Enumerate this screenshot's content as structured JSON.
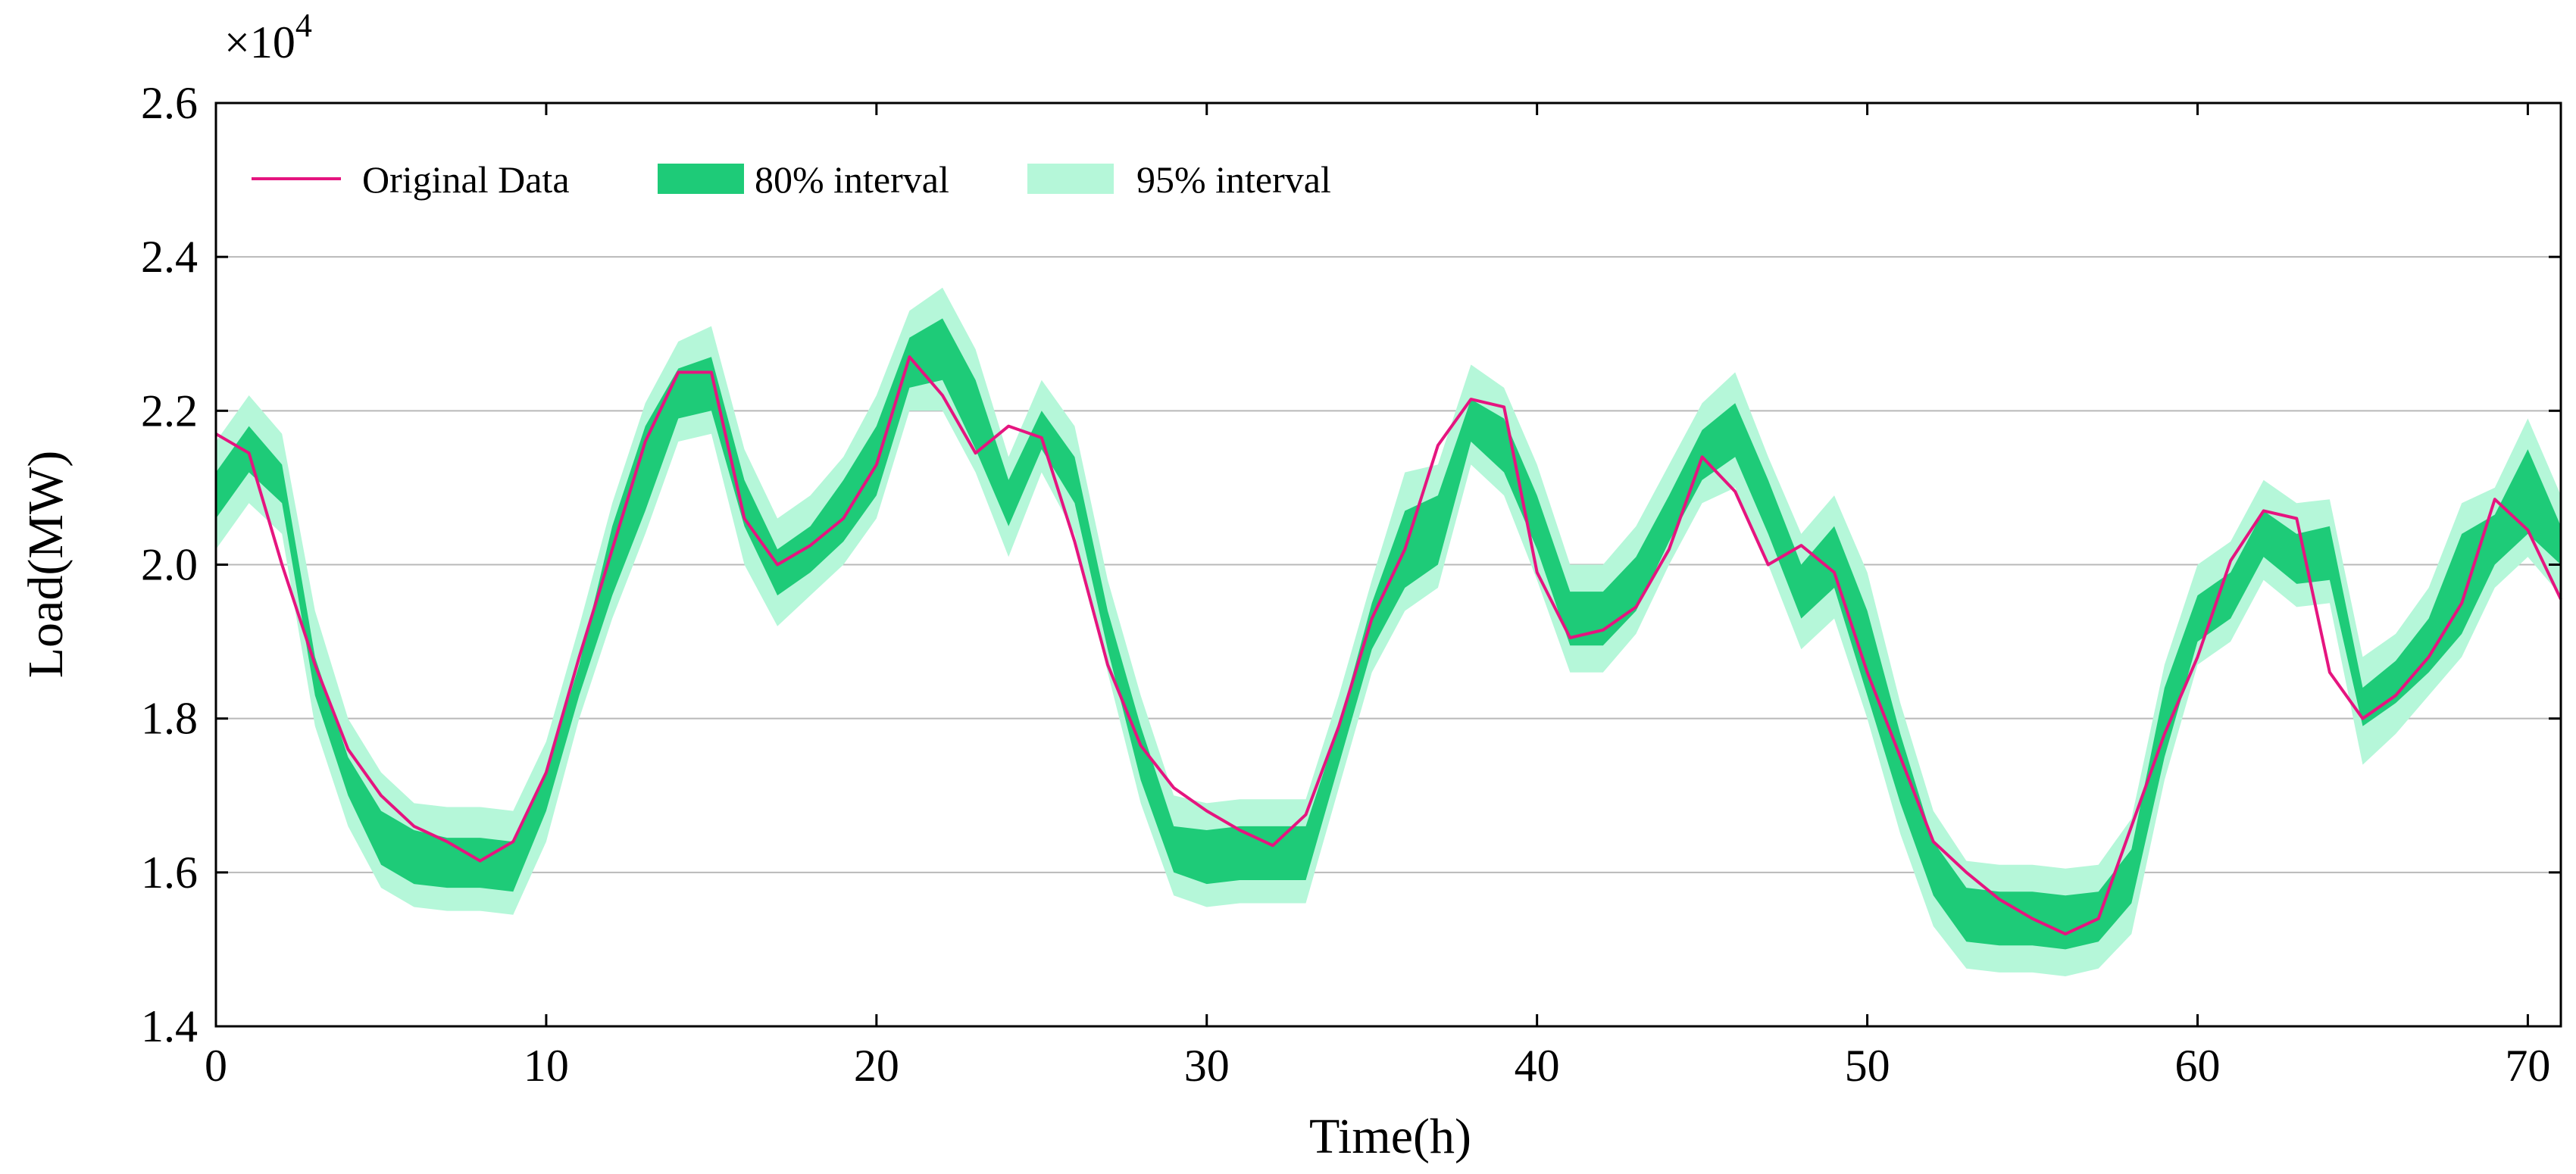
{
  "chart_data": {
    "type": "line",
    "title": "",
    "xlabel": "Time(h)",
    "ylabel": "Load(MW)",
    "y_scale_label": "×10",
    "y_scale_exponent": "4",
    "xlim": [
      0,
      71
    ],
    "ylim": [
      1.4,
      2.6
    ],
    "x_ticks": [
      0,
      10,
      20,
      30,
      40,
      50,
      60,
      70
    ],
    "x_tick_labels": [
      "0",
      "10",
      "20",
      "30",
      "40",
      "50",
      "60",
      "70"
    ],
    "y_ticks": [
      1.4,
      1.6,
      1.8,
      2.0,
      2.2,
      2.4,
      2.6
    ],
    "y_tick_labels": [
      "1.4",
      "1.6",
      "1.8",
      "2.0",
      "2.2",
      "2.4",
      "2.6"
    ],
    "grid": "horizontal",
    "legend_position": "top-left",
    "legend": [
      "Original Data",
      "80% interval",
      "95% interval"
    ],
    "colors": {
      "original": "#e5157f",
      "band80": "#1ecb78",
      "band95": "#b5f7d9",
      "grid": "#b9b9b9",
      "axis": "#000000"
    },
    "x": [
      0,
      1,
      2,
      3,
      4,
      5,
      6,
      7,
      8,
      9,
      10,
      11,
      12,
      13,
      14,
      15,
      16,
      17,
      18,
      19,
      20,
      21,
      22,
      23,
      24,
      25,
      26,
      27,
      28,
      29,
      30,
      31,
      32,
      33,
      34,
      35,
      36,
      37,
      38,
      39,
      40,
      41,
      42,
      43,
      44,
      45,
      46,
      47,
      48,
      49,
      50,
      51,
      52,
      53,
      54,
      55,
      56,
      57,
      58,
      59,
      60,
      61,
      62,
      63,
      64,
      65,
      66,
      67,
      68,
      69,
      70,
      71
    ],
    "series": [
      {
        "name": "Original Data",
        "values": [
          2.17,
          2.145,
          2.0,
          1.87,
          1.76,
          1.7,
          1.66,
          1.64,
          1.615,
          1.64,
          1.73,
          1.88,
          2.02,
          2.16,
          2.25,
          2.25,
          2.06,
          2.0,
          2.025,
          2.06,
          2.13,
          2.27,
          2.22,
          2.145,
          2.18,
          2.165,
          2.03,
          1.87,
          1.765,
          1.71,
          1.68,
          1.655,
          1.635,
          1.675,
          1.79,
          1.93,
          2.02,
          2.155,
          2.215,
          2.205,
          1.99,
          1.905,
          1.915,
          1.945,
          2.02,
          2.14,
          2.095,
          2.0,
          2.025,
          1.99,
          1.86,
          1.75,
          1.64,
          1.6,
          1.565,
          1.54,
          1.52,
          1.54,
          1.66,
          1.78,
          1.88,
          2.005,
          2.07,
          2.06,
          1.86,
          1.8,
          1.83,
          1.88,
          1.95,
          2.085,
          2.045,
          1.955
        ]
      },
      {
        "name": "80% interval",
        "lower": [
          2.06,
          2.12,
          2.08,
          1.83,
          1.7,
          1.61,
          1.585,
          1.58,
          1.58,
          1.575,
          1.68,
          1.83,
          1.96,
          2.07,
          2.19,
          2.2,
          2.05,
          1.96,
          1.99,
          2.03,
          2.09,
          2.23,
          2.24,
          2.15,
          2.05,
          2.15,
          2.08,
          1.89,
          1.72,
          1.6,
          1.585,
          1.59,
          1.59,
          1.59,
          1.74,
          1.89,
          1.97,
          2.0,
          2.16,
          2.12,
          2.02,
          1.895,
          1.895,
          1.94,
          2.03,
          2.11,
          2.14,
          2.04,
          1.93,
          1.97,
          1.83,
          1.69,
          1.57,
          1.51,
          1.505,
          1.505,
          1.5,
          1.51,
          1.56,
          1.75,
          1.9,
          1.93,
          2.01,
          1.975,
          1.98,
          1.79,
          1.82,
          1.86,
          1.91,
          2.0,
          2.04,
          2.0
        ]
      },
      {
        "name": "80% interval",
        "upper": [
          2.12,
          2.18,
          2.13,
          1.88,
          1.75,
          1.68,
          1.655,
          1.645,
          1.645,
          1.64,
          1.73,
          1.87,
          2.05,
          2.18,
          2.255,
          2.27,
          2.11,
          2.02,
          2.05,
          2.11,
          2.18,
          2.295,
          2.32,
          2.24,
          2.11,
          2.2,
          2.14,
          1.94,
          1.79,
          1.66,
          1.655,
          1.66,
          1.66,
          1.66,
          1.79,
          1.95,
          2.07,
          2.09,
          2.215,
          2.19,
          2.09,
          1.965,
          1.965,
          2.01,
          2.09,
          2.175,
          2.21,
          2.11,
          2.0,
          2.05,
          1.94,
          1.78,
          1.64,
          1.58,
          1.575,
          1.575,
          1.57,
          1.575,
          1.63,
          1.84,
          1.96,
          1.99,
          2.07,
          2.04,
          2.05,
          1.84,
          1.875,
          1.93,
          2.04,
          2.065,
          2.15,
          2.05
        ]
      },
      {
        "name": "95% interval",
        "lower": [
          2.02,
          2.08,
          2.04,
          1.79,
          1.66,
          1.58,
          1.555,
          1.55,
          1.55,
          1.545,
          1.64,
          1.8,
          1.93,
          2.04,
          2.16,
          2.17,
          2.0,
          1.92,
          1.96,
          2.0,
          2.06,
          2.2,
          2.2,
          2.12,
          2.01,
          2.12,
          2.04,
          1.86,
          1.69,
          1.57,
          1.555,
          1.56,
          1.56,
          1.56,
          1.71,
          1.86,
          1.94,
          1.97,
          2.13,
          2.09,
          1.98,
          1.86,
          1.86,
          1.91,
          2.0,
          2.08,
          2.1,
          2.0,
          1.89,
          1.93,
          1.8,
          1.65,
          1.53,
          1.475,
          1.47,
          1.47,
          1.465,
          1.475,
          1.52,
          1.72,
          1.87,
          1.9,
          1.98,
          1.945,
          1.95,
          1.74,
          1.78,
          1.83,
          1.88,
          1.97,
          2.01,
          1.96
        ]
      },
      {
        "name": "95% interval",
        "upper": [
          2.16,
          2.22,
          2.17,
          1.94,
          1.8,
          1.73,
          1.69,
          1.685,
          1.685,
          1.68,
          1.77,
          1.92,
          2.08,
          2.21,
          2.29,
          2.31,
          2.15,
          2.06,
          2.09,
          2.14,
          2.22,
          2.33,
          2.36,
          2.28,
          2.14,
          2.24,
          2.18,
          1.98,
          1.83,
          1.7,
          1.69,
          1.695,
          1.695,
          1.695,
          1.83,
          1.98,
          2.12,
          2.13,
          2.26,
          2.23,
          2.13,
          2.0,
          2.0,
          2.05,
          2.13,
          2.21,
          2.25,
          2.14,
          2.04,
          2.09,
          1.99,
          1.82,
          1.68,
          1.615,
          1.61,
          1.61,
          1.605,
          1.61,
          1.67,
          1.87,
          2.0,
          2.03,
          2.11,
          2.08,
          2.085,
          1.88,
          1.91,
          1.97,
          2.08,
          2.1,
          2.19,
          2.09
        ]
      }
    ]
  }
}
